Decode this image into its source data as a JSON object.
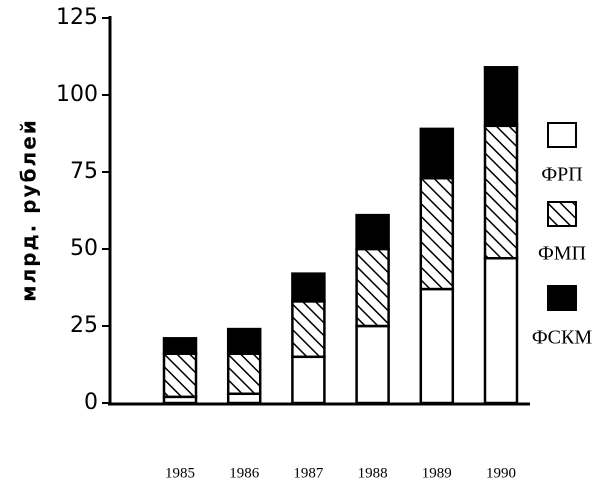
{
  "chart_data": {
    "type": "bar",
    "stacked": true,
    "y_label": "млрд. рублей",
    "categories": [
      "1985",
      "1986",
      "1987",
      "1988",
      "1989",
      "1990"
    ],
    "series": [
      {
        "name": "ФРП",
        "color": "#ffffff",
        "pattern": "solid",
        "values": [
          2,
          3,
          15,
          25,
          37,
          47
        ]
      },
      {
        "name": "ФМП",
        "color": "#ffffff",
        "pattern": "hatch",
        "values": [
          14,
          13,
          18,
          25,
          36,
          43
        ]
      },
      {
        "name": "ФСКМ",
        "color": "#000000",
        "pattern": "solid",
        "values": [
          5,
          8,
          9,
          11,
          16,
          19
        ]
      }
    ],
    "ylim": [
      0,
      125
    ],
    "yticks": [
      0,
      25,
      50,
      75,
      100,
      125
    ]
  }
}
